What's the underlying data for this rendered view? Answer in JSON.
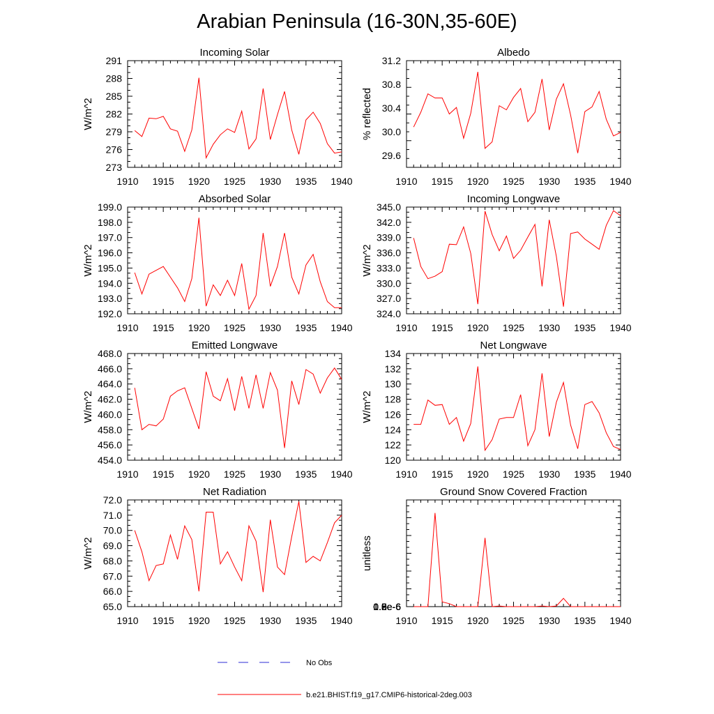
{
  "title": "Arabian Peninsula (16-30N,35-60E)",
  "legend": {
    "entries": [
      {
        "label": "No Obs",
        "color": "#2b2bd6",
        "style": "dashed"
      },
      {
        "label": "b.e21.BHIST.f19_g17.CMIP6-historical-2deg.003",
        "color": "#ff0000",
        "style": "solid"
      }
    ]
  },
  "chart_data": [
    {
      "type": "line",
      "title": "Incoming Solar",
      "ylabel": "W/m^2",
      "xlabel": "",
      "xlim": [
        1910,
        1940
      ],
      "ylim": [
        273,
        291
      ],
      "xticks": [
        "1910",
        "1915",
        "1920",
        "1925",
        "1930",
        "1935",
        "1940"
      ],
      "yticks": [
        "273",
        "276",
        "279",
        "282",
        "285",
        "288",
        "291"
      ],
      "grid": false,
      "series": [
        {
          "color": "#ff0000",
          "x": [
            1911,
            1912,
            1913,
            1914,
            1915,
            1916,
            1917,
            1918,
            1919,
            1920,
            1921,
            1922,
            1923,
            1924,
            1925,
            1926,
            1927,
            1928,
            1929,
            1930,
            1931,
            1932,
            1933,
            1934,
            1935,
            1936,
            1937,
            1938,
            1939,
            1940
          ],
          "y": [
            279.2,
            278.2,
            281.3,
            281.2,
            281.6,
            279.5,
            279.1,
            275.7,
            279.3,
            288.1,
            274.6,
            276.9,
            278.5,
            279.5,
            278.9,
            282.5,
            276.1,
            277.8,
            286.3,
            277.7,
            281.9,
            285.8,
            279.3,
            275.2,
            281.0,
            282.3,
            280.4,
            277.0,
            275.4,
            275.6
          ]
        }
      ]
    },
    {
      "type": "line",
      "title": "Albedo",
      "ylabel": "% reflected",
      "xlabel": "",
      "xlim": [
        1910,
        1940
      ],
      "ylim": [
        29.4,
        31.2
      ],
      "xticks": [
        "1910",
        "1915",
        "1920",
        "1925",
        "1930",
        "1935",
        "1940"
      ],
      "yticks": [
        "29.6",
        "30.0",
        "30.4",
        "30.8",
        "31.2"
      ],
      "grid": false,
      "series": [
        {
          "color": "#ff0000",
          "x": [
            1911,
            1912,
            1913,
            1914,
            1915,
            1916,
            1917,
            1918,
            1919,
            1920,
            1921,
            1922,
            1923,
            1924,
            1925,
            1926,
            1927,
            1928,
            1929,
            1930,
            1931,
            1932,
            1933,
            1934,
            1935,
            1936,
            1937,
            1938,
            1939,
            1940
          ],
          "y": [
            30.08,
            30.33,
            30.64,
            30.57,
            30.57,
            30.3,
            30.41,
            29.89,
            30.31,
            31.01,
            29.72,
            29.83,
            30.44,
            30.37,
            30.58,
            30.73,
            30.17,
            30.33,
            30.89,
            30.03,
            30.55,
            30.81,
            30.28,
            29.64,
            30.34,
            30.42,
            30.68,
            30.21,
            29.93,
            29.99
          ]
        }
      ]
    },
    {
      "type": "line",
      "title": "Absorbed Solar",
      "ylabel": "W/m^2",
      "xlabel": "",
      "xlim": [
        1910,
        1940
      ],
      "ylim": [
        192.0,
        199.0
      ],
      "xticks": [
        "1910",
        "1915",
        "1920",
        "1925",
        "1930",
        "1935",
        "1940"
      ],
      "yticks": [
        "192.0",
        "193.0",
        "194.0",
        "195.0",
        "196.0",
        "197.0",
        "198.0",
        "199.0"
      ],
      "grid": false,
      "series": [
        {
          "color": "#ff0000",
          "x": [
            1911,
            1912,
            1913,
            1914,
            1915,
            1916,
            1917,
            1918,
            1919,
            1920,
            1921,
            1922,
            1923,
            1924,
            1925,
            1926,
            1927,
            1928,
            1929,
            1930,
            1931,
            1932,
            1933,
            1934,
            1935,
            1936,
            1937,
            1938,
            1939,
            1940
          ],
          "y": [
            194.7,
            193.3,
            194.6,
            194.85,
            195.1,
            194.4,
            193.7,
            192.8,
            194.3,
            198.3,
            192.5,
            193.9,
            193.2,
            194.2,
            193.2,
            195.3,
            192.3,
            193.2,
            197.3,
            193.8,
            195.1,
            197.3,
            194.4,
            193.3,
            195.2,
            195.9,
            194.1,
            192.8,
            192.4,
            192.4
          ]
        }
      ]
    },
    {
      "type": "line",
      "title": "Incoming Longwave",
      "ylabel": "W/m^2",
      "xlabel": "",
      "xlim": [
        1910,
        1940
      ],
      "ylim": [
        324.0,
        345.0
      ],
      "xticks": [
        "1910",
        "1915",
        "1920",
        "1925",
        "1930",
        "1935",
        "1940"
      ],
      "yticks": [
        "324.0",
        "327.0",
        "330.0",
        "333.0",
        "336.0",
        "339.0",
        "342.0",
        "345.0"
      ],
      "grid": false,
      "series": [
        {
          "color": "#ff0000",
          "x": [
            1911,
            1912,
            1913,
            1914,
            1915,
            1916,
            1917,
            1918,
            1919,
            1920,
            1921,
            1922,
            1923,
            1924,
            1925,
            1926,
            1927,
            1928,
            1929,
            1930,
            1931,
            1932,
            1933,
            1934,
            1935,
            1936,
            1937,
            1938,
            1939,
            1940
          ],
          "y": [
            338.9,
            333.3,
            330.9,
            331.4,
            332.3,
            337.7,
            337.6,
            341.1,
            335.9,
            325.9,
            344.2,
            339.6,
            336.4,
            339.3,
            334.9,
            336.5,
            339.1,
            341.6,
            329.4,
            342.5,
            335.3,
            325.4,
            339.8,
            340.1,
            338.7,
            337.7,
            336.7,
            341.4,
            344.3,
            343.3
          ]
        }
      ]
    },
    {
      "type": "line",
      "title": "Emitted Longwave",
      "ylabel": "W/m^2",
      "xlabel": "",
      "xlim": [
        1910,
        1940
      ],
      "ylim": [
        454.0,
        468.0
      ],
      "xticks": [
        "1910",
        "1915",
        "1920",
        "1925",
        "1930",
        "1935",
        "1940"
      ],
      "yticks": [
        "454.0",
        "456.0",
        "458.0",
        "460.0",
        "462.0",
        "464.0",
        "466.0",
        "468.0"
      ],
      "grid": false,
      "series": [
        {
          "color": "#ff0000",
          "x": [
            1911,
            1912,
            1913,
            1914,
            1915,
            1916,
            1917,
            1918,
            1919,
            1920,
            1921,
            1922,
            1923,
            1924,
            1925,
            1926,
            1927,
            1928,
            1929,
            1930,
            1931,
            1932,
            1933,
            1934,
            1935,
            1936,
            1937,
            1938,
            1939,
            1940
          ],
          "y": [
            463.5,
            458.0,
            458.7,
            458.5,
            459.4,
            462.4,
            463.1,
            463.5,
            460.8,
            458.1,
            465.6,
            462.4,
            461.8,
            464.7,
            460.5,
            465.0,
            460.8,
            465.2,
            460.8,
            465.5,
            463.2,
            455.6,
            464.4,
            461.3,
            465.9,
            465.3,
            462.8,
            464.8,
            466.1,
            464.6
          ]
        }
      ]
    },
    {
      "type": "line",
      "title": "Net Longwave",
      "ylabel": "W/m^2",
      "xlabel": "",
      "xlim": [
        1910,
        1940
      ],
      "ylim": [
        120,
        134
      ],
      "xticks": [
        "1910",
        "1915",
        "1920",
        "1925",
        "1930",
        "1935",
        "1940"
      ],
      "yticks": [
        "120",
        "122",
        "124",
        "126",
        "128",
        "130",
        "132",
        "134"
      ],
      "grid": false,
      "series": [
        {
          "color": "#ff0000",
          "x": [
            1911,
            1912,
            1913,
            1914,
            1915,
            1916,
            1917,
            1918,
            1919,
            1920,
            1921,
            1922,
            1923,
            1924,
            1925,
            1926,
            1927,
            1928,
            1929,
            1930,
            1931,
            1932,
            1933,
            1934,
            1935,
            1936,
            1937,
            1938,
            1939,
            1940
          ],
          "y": [
            124.7,
            124.7,
            127.9,
            127.2,
            127.3,
            124.7,
            125.6,
            122.5,
            124.8,
            132.3,
            121.3,
            122.7,
            125.4,
            125.6,
            125.6,
            128.6,
            121.9,
            124.0,
            131.4,
            123.1,
            127.6,
            130.2,
            124.6,
            121.5,
            127.3,
            127.7,
            126.2,
            123.6,
            121.8,
            121.4
          ]
        }
      ]
    },
    {
      "type": "line",
      "title": "Net Radiation",
      "ylabel": "W/m^2",
      "xlabel": "",
      "xlim": [
        1910,
        1940
      ],
      "ylim": [
        65.0,
        72.0
      ],
      "xticks": [
        "1910",
        "1915",
        "1920",
        "1925",
        "1930",
        "1935",
        "1940"
      ],
      "yticks": [
        "65.0",
        "66.0",
        "67.0",
        "68.0",
        "69.0",
        "70.0",
        "71.0",
        "72.0"
      ],
      "grid": false,
      "series": [
        {
          "color": "#ff0000",
          "x": [
            1911,
            1912,
            1913,
            1914,
            1915,
            1916,
            1917,
            1918,
            1919,
            1920,
            1921,
            1922,
            1923,
            1924,
            1925,
            1926,
            1927,
            1928,
            1929,
            1930,
            1931,
            1932,
            1933,
            1934,
            1935,
            1936,
            1937,
            1938,
            1939,
            1940
          ],
          "y": [
            70.0,
            68.6,
            66.7,
            67.7,
            67.8,
            69.7,
            68.1,
            70.3,
            69.4,
            66.0,
            71.2,
            71.2,
            67.8,
            68.6,
            67.6,
            66.7,
            70.3,
            69.3,
            65.95,
            70.7,
            67.6,
            67.1,
            69.6,
            71.9,
            67.9,
            68.3,
            68.0,
            69.2,
            70.5,
            71.0
          ]
        }
      ]
    },
    {
      "type": "line",
      "title": "Ground Snow Covered Fraction",
      "ylabel": "unitless",
      "xlabel": "",
      "xlim": [
        1910,
        1940
      ],
      "ylim": [
        0,
        1.8e-06
      ],
      "xticks": [
        "1910",
        "1915",
        "1920",
        "1925",
        "1930",
        "1935",
        "1940"
      ],
      "yticks": [
        "0.0e-6",
        "0.3e-6",
        "0.6e-6",
        "0.9e-6",
        "1.2e-6",
        "1.5e-6",
        "1.8e-6"
      ],
      "grid": false,
      "series": [
        {
          "color": "#ff0000",
          "x": [
            1911,
            1912,
            1913,
            1914,
            1915,
            1916,
            1917,
            1918,
            1919,
            1920,
            1921,
            1922,
            1923,
            1924,
            1925,
            1926,
            1927,
            1928,
            1929,
            1930,
            1931,
            1932,
            1933,
            1934,
            1935,
            1936,
            1937,
            1938,
            1939,
            1940
          ],
          "y": [
            0,
            0,
            0,
            1.58e-06,
            8e-08,
            5e-08,
            0,
            0,
            0,
            0,
            1.16e-06,
            0,
            1e-08,
            0,
            0,
            0,
            0,
            0,
            1e-08,
            0,
            1e-08,
            1.4e-07,
            0,
            0,
            0,
            0,
            0,
            0,
            0,
            0
          ]
        }
      ]
    }
  ]
}
